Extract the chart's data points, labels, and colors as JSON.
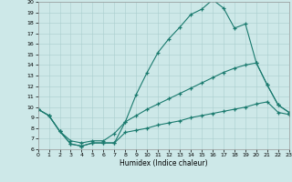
{
  "xlabel": "Humidex (Indice chaleur)",
  "bg_color": "#cde8e8",
  "line_color": "#1a7a6e",
  "grid_color": "#aacece",
  "xlim": [
    0,
    23
  ],
  "ylim": [
    6,
    20
  ],
  "xticks": [
    0,
    1,
    2,
    3,
    4,
    5,
    6,
    7,
    8,
    9,
    10,
    11,
    12,
    13,
    14,
    15,
    16,
    17,
    18,
    19,
    20,
    21,
    22,
    23
  ],
  "yticks": [
    6,
    7,
    8,
    9,
    10,
    11,
    12,
    13,
    14,
    15,
    16,
    17,
    18,
    19,
    20
  ],
  "line1_x": [
    0,
    1,
    2,
    3,
    4,
    5,
    6,
    7,
    8,
    9,
    10,
    11,
    12,
    13,
    14,
    15,
    16,
    17,
    18,
    19,
    20,
    21,
    22,
    23
  ],
  "line1_y": [
    9.8,
    9.2,
    7.7,
    6.5,
    6.3,
    6.6,
    6.6,
    6.6,
    8.6,
    11.2,
    13.3,
    15.2,
    16.5,
    17.6,
    18.8,
    19.3,
    20.2,
    19.4,
    17.5,
    17.9,
    14.2,
    12.1,
    10.2,
    9.5
  ],
  "line2_x": [
    0,
    1,
    2,
    3,
    4,
    5,
    6,
    7,
    8,
    9,
    10,
    11,
    12,
    13,
    14,
    15,
    16,
    17,
    18,
    19,
    20,
    21,
    22,
    23
  ],
  "line2_y": [
    9.8,
    9.2,
    7.7,
    6.8,
    6.6,
    6.8,
    6.8,
    7.5,
    8.6,
    9.2,
    9.8,
    10.3,
    10.8,
    11.3,
    11.8,
    12.3,
    12.8,
    13.3,
    13.7,
    14.0,
    14.2,
    12.1,
    10.2,
    9.5
  ],
  "line3_x": [
    0,
    1,
    2,
    3,
    4,
    5,
    6,
    7,
    8,
    9,
    10,
    11,
    12,
    13,
    14,
    15,
    16,
    17,
    18,
    19,
    20,
    21,
    22,
    23
  ],
  "line3_y": [
    9.8,
    9.2,
    7.7,
    6.5,
    6.3,
    6.6,
    6.6,
    6.6,
    7.6,
    7.8,
    8.0,
    8.3,
    8.5,
    8.7,
    9.0,
    9.2,
    9.4,
    9.6,
    9.8,
    10.0,
    10.3,
    10.5,
    9.5,
    9.3
  ]
}
